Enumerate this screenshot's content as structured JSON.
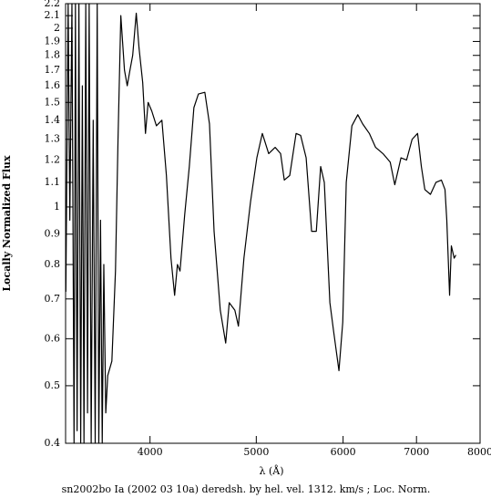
{
  "chart_data": {
    "type": "line",
    "title": "sn2002bo Ia (2002 03 10a) deredsh. by hel. vel.  1312. km/s ;  Loc. Norm.",
    "xlabel": "λ (Å)",
    "ylabel": "Locally Normalized Flux",
    "xscale": "log",
    "yscale": "log",
    "color": "#000000",
    "xlim": [
      3350,
      8000
    ],
    "ylim": [
      0.4,
      2.2
    ],
    "xticks": [
      4000,
      5000,
      6000,
      7000,
      8000
    ],
    "yticks": [
      0.4,
      0.5,
      0.6,
      0.7,
      0.8,
      0.9,
      1,
      1.1,
      1.2,
      1.3,
      1.4,
      1.5,
      1.6,
      1.7,
      1.8,
      1.9,
      2,
      2.1,
      2.2
    ],
    "x": [
      3352,
      3368,
      3380,
      3395,
      3410,
      3420,
      3432,
      3445,
      3458,
      3470,
      3482,
      3495,
      3508,
      3520,
      3535,
      3550,
      3565,
      3580,
      3592,
      3605,
      3618,
      3630,
      3645,
      3660,
      3692,
      3720,
      3740,
      3762,
      3791,
      3813,
      3835,
      3857,
      3886,
      3909,
      3939,
      3962,
      3984,
      4015,
      4054,
      4101,
      4140,
      4180,
      4212,
      4237,
      4260,
      4302,
      4344,
      4386,
      4428,
      4488,
      4532,
      4576,
      4636,
      4689,
      4724,
      4780,
      4816,
      4872,
      4940,
      5006,
      5064,
      5132,
      5202,
      5262,
      5303,
      5364,
      5436,
      5488,
      5552,
      5616,
      5672,
      5724,
      5768,
      5836,
      5880,
      5948,
      5996,
      6040,
      6112,
      6188,
      6252,
      6340,
      6424,
      6524,
      6624,
      6688,
      6776,
      6856,
      6936,
      7016,
      7072,
      7124,
      7208,
      7292,
      7376,
      7432,
      7460,
      7504,
      7532,
      7576,
      7604
    ],
    "values": [
      0.72,
      2.2,
      0.95,
      2.2,
      0.4,
      2.2,
      0.42,
      2.2,
      0.4,
      1.6,
      0.4,
      2.2,
      0.45,
      2.2,
      0.4,
      1.4,
      0.4,
      2.2,
      0.4,
      0.95,
      0.4,
      0.8,
      0.45,
      0.52,
      0.55,
      0.78,
      1.3,
      2.1,
      1.7,
      1.6,
      1.7,
      1.8,
      2.12,
      1.85,
      1.62,
      1.33,
      1.5,
      1.45,
      1.37,
      1.4,
      1.13,
      0.82,
      0.71,
      0.8,
      0.78,
      0.97,
      1.17,
      1.47,
      1.55,
      1.56,
      1.38,
      0.91,
      0.67,
      0.59,
      0.69,
      0.67,
      0.63,
      0.82,
      1.02,
      1.21,
      1.33,
      1.23,
      1.26,
      1.23,
      1.11,
      1.13,
      1.33,
      1.32,
      1.21,
      0.91,
      0.91,
      1.17,
      1.1,
      0.69,
      0.62,
      0.53,
      0.64,
      1.1,
      1.37,
      1.43,
      1.38,
      1.33,
      1.26,
      1.23,
      1.19,
      1.09,
      1.21,
      1.2,
      1.3,
      1.33,
      1.17,
      1.07,
      1.05,
      1.1,
      1.11,
      1.07,
      0.95,
      0.71,
      0.86,
      0.82,
      0.83
    ]
  }
}
